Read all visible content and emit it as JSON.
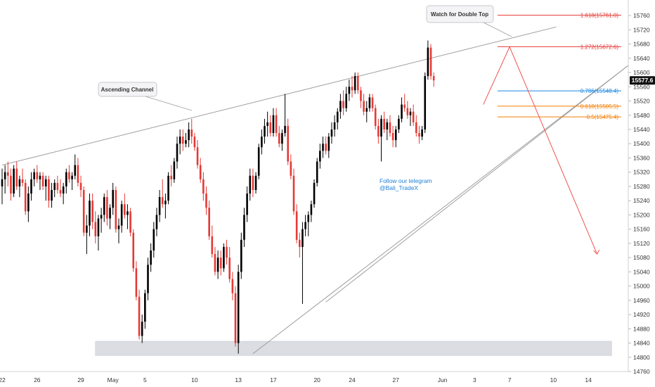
{
  "chart_data": {
    "type": "candlestick",
    "y_range": [
      14760,
      15780
    ],
    "y_ticks": [
      14760,
      14800,
      14840,
      14880,
      14920,
      14960,
      15000,
      15040,
      15080,
      15120,
      15160,
      15200,
      15240,
      15280,
      15320,
      15360,
      15400,
      15440,
      15480,
      15520,
      15560,
      15600,
      15640,
      15680,
      15720,
      15760
    ],
    "x_ticks": [
      {
        "label": "22",
        "bar": 0
      },
      {
        "label": "26",
        "bar": 12
      },
      {
        "label": "29",
        "bar": 27
      },
      {
        "label": "May",
        "bar": 38
      },
      {
        "label": "5",
        "bar": 49
      },
      {
        "label": "10",
        "bar": 66
      },
      {
        "label": "13",
        "bar": 81
      },
      {
        "label": "17",
        "bar": 93
      },
      {
        "label": "20",
        "bar": 108
      },
      {
        "label": "24",
        "bar": 120
      },
      {
        "label": "27",
        "bar": 135
      },
      {
        "label": "Jun",
        "bar": 151
      },
      {
        "label": "3",
        "bar": 162
      },
      {
        "label": "7",
        "bar": 174
      },
      {
        "label": "10",
        "bar": 189
      },
      {
        "label": "14",
        "bar": 201
      }
    ],
    "current_price": "15577.6",
    "candles": [
      {
        "o": 15280,
        "h": 15330,
        "l": 15230,
        "c": 15300
      },
      {
        "o": 15300,
        "h": 15340,
        "l": 15260,
        "c": 15320
      },
      {
        "o": 15320,
        "h": 15350,
        "l": 15280,
        "c": 15310
      },
      {
        "o": 15310,
        "h": 15330,
        "l": 15240,
        "c": 15260
      },
      {
        "o": 15260,
        "h": 15340,
        "l": 15250,
        "c": 15330
      },
      {
        "o": 15330,
        "h": 15350,
        "l": 15270,
        "c": 15280
      },
      {
        "o": 15280,
        "h": 15310,
        "l": 15250,
        "c": 15300
      },
      {
        "o": 15300,
        "h": 15330,
        "l": 15280,
        "c": 15290
      },
      {
        "o": 15290,
        "h": 15300,
        "l": 15200,
        "c": 15210
      },
      {
        "o": 15210,
        "h": 15280,
        "l": 15180,
        "c": 15260
      },
      {
        "o": 15260,
        "h": 15320,
        "l": 15240,
        "c": 15300
      },
      {
        "o": 15300,
        "h": 15330,
        "l": 15280,
        "c": 15320
      },
      {
        "o": 15320,
        "h": 15340,
        "l": 15290,
        "c": 15300
      },
      {
        "o": 15300,
        "h": 15320,
        "l": 15270,
        "c": 15310
      },
      {
        "o": 15310,
        "h": 15320,
        "l": 15270,
        "c": 15280
      },
      {
        "o": 15280,
        "h": 15310,
        "l": 15240,
        "c": 15300
      },
      {
        "o": 15300,
        "h": 15310,
        "l": 15220,
        "c": 15240
      },
      {
        "o": 15240,
        "h": 15290,
        "l": 15220,
        "c": 15270
      },
      {
        "o": 15270,
        "h": 15300,
        "l": 15250,
        "c": 15290
      },
      {
        "o": 15290,
        "h": 15310,
        "l": 15260,
        "c": 15270
      },
      {
        "o": 15270,
        "h": 15300,
        "l": 15250,
        "c": 15260
      },
      {
        "o": 15260,
        "h": 15290,
        "l": 15230,
        "c": 15280
      },
      {
        "o": 15280,
        "h": 15330,
        "l": 15260,
        "c": 15320
      },
      {
        "o": 15320,
        "h": 15340,
        "l": 15290,
        "c": 15300
      },
      {
        "o": 15300,
        "h": 15320,
        "l": 15270,
        "c": 15310
      },
      {
        "o": 15310,
        "h": 15370,
        "l": 15300,
        "c": 15340
      },
      {
        "o": 15340,
        "h": 15360,
        "l": 15280,
        "c": 15290
      },
      {
        "o": 15290,
        "h": 15310,
        "l": 15250,
        "c": 15270
      },
      {
        "o": 15270,
        "h": 15280,
        "l": 15140,
        "c": 15150
      },
      {
        "o": 15150,
        "h": 15200,
        "l": 15090,
        "c": 15170
      },
      {
        "o": 15170,
        "h": 15260,
        "l": 15140,
        "c": 15240
      },
      {
        "o": 15240,
        "h": 15260,
        "l": 15160,
        "c": 15180
      },
      {
        "o": 15180,
        "h": 15210,
        "l": 15120,
        "c": 15140
      },
      {
        "o": 15140,
        "h": 15200,
        "l": 15100,
        "c": 15190
      },
      {
        "o": 15190,
        "h": 15220,
        "l": 15150,
        "c": 15200
      },
      {
        "o": 15200,
        "h": 15260,
        "l": 15180,
        "c": 15250
      },
      {
        "o": 15250,
        "h": 15270,
        "l": 15170,
        "c": 15190
      },
      {
        "o": 15190,
        "h": 15230,
        "l": 15160,
        "c": 15220
      },
      {
        "o": 15220,
        "h": 15290,
        "l": 15200,
        "c": 15270
      },
      {
        "o": 15270,
        "h": 15280,
        "l": 15150,
        "c": 15160
      },
      {
        "o": 15160,
        "h": 15190,
        "l": 15120,
        "c": 15170
      },
      {
        "o": 15170,
        "h": 15240,
        "l": 15150,
        "c": 15230
      },
      {
        "o": 15230,
        "h": 15260,
        "l": 15190,
        "c": 15200
      },
      {
        "o": 15200,
        "h": 15230,
        "l": 15160,
        "c": 15210
      },
      {
        "o": 15210,
        "h": 15220,
        "l": 15140,
        "c": 15150
      },
      {
        "o": 15150,
        "h": 15160,
        "l": 15040,
        "c": 15050
      },
      {
        "o": 15050,
        "h": 15070,
        "l": 14960,
        "c": 14970
      },
      {
        "o": 14970,
        "h": 14990,
        "l": 14850,
        "c": 14860
      },
      {
        "o": 14860,
        "h": 14920,
        "l": 14840,
        "c": 14900
      },
      {
        "o": 14900,
        "h": 14990,
        "l": 14880,
        "c": 14980
      },
      {
        "o": 14980,
        "h": 15080,
        "l": 14960,
        "c": 15060
      },
      {
        "o": 15060,
        "h": 15120,
        "l": 15040,
        "c": 15100
      },
      {
        "o": 15100,
        "h": 15180,
        "l": 15080,
        "c": 15160
      },
      {
        "o": 15160,
        "h": 15220,
        "l": 15140,
        "c": 15200
      },
      {
        "o": 15200,
        "h": 15270,
        "l": 15180,
        "c": 15250
      },
      {
        "o": 15250,
        "h": 15300,
        "l": 15220,
        "c": 15230
      },
      {
        "o": 15230,
        "h": 15260,
        "l": 15190,
        "c": 15240
      },
      {
        "o": 15240,
        "h": 15320,
        "l": 15230,
        "c": 15310
      },
      {
        "o": 15310,
        "h": 15340,
        "l": 15280,
        "c": 15300
      },
      {
        "o": 15300,
        "h": 15360,
        "l": 15290,
        "c": 15350
      },
      {
        "o": 15350,
        "h": 15420,
        "l": 15330,
        "c": 15400
      },
      {
        "o": 15400,
        "h": 15440,
        "l": 15370,
        "c": 15420
      },
      {
        "o": 15420,
        "h": 15440,
        "l": 15380,
        "c": 15400
      },
      {
        "o": 15400,
        "h": 15430,
        "l": 15390,
        "c": 15410
      },
      {
        "o": 15410,
        "h": 15460,
        "l": 15390,
        "c": 15440
      },
      {
        "o": 15440,
        "h": 15470,
        "l": 15400,
        "c": 15420
      },
      {
        "o": 15420,
        "h": 15430,
        "l": 15380,
        "c": 15390
      },
      {
        "o": 15390,
        "h": 15410,
        "l": 15330,
        "c": 15340
      },
      {
        "o": 15340,
        "h": 15360,
        "l": 15290,
        "c": 15300
      },
      {
        "o": 15300,
        "h": 15320,
        "l": 15240,
        "c": 15260
      },
      {
        "o": 15260,
        "h": 15280,
        "l": 15200,
        "c": 15220
      },
      {
        "o": 15220,
        "h": 15240,
        "l": 15130,
        "c": 15140
      },
      {
        "o": 15140,
        "h": 15170,
        "l": 15080,
        "c": 15090
      },
      {
        "o": 15090,
        "h": 15110,
        "l": 15030,
        "c": 15040
      },
      {
        "o": 15040,
        "h": 15100,
        "l": 15020,
        "c": 15080
      },
      {
        "o": 15080,
        "h": 15100,
        "l": 15030,
        "c": 15050
      },
      {
        "o": 15050,
        "h": 15120,
        "l": 15040,
        "c": 15110
      },
      {
        "o": 15110,
        "h": 15130,
        "l": 15060,
        "c": 15080
      },
      {
        "o": 15080,
        "h": 15110,
        "l": 15010,
        "c": 15020
      },
      {
        "o": 15020,
        "h": 15040,
        "l": 14960,
        "c": 14980
      },
      {
        "o": 14980,
        "h": 15000,
        "l": 14830,
        "c": 14840
      },
      {
        "o": 14840,
        "h": 15060,
        "l": 14810,
        "c": 15040
      },
      {
        "o": 15040,
        "h": 15150,
        "l": 15020,
        "c": 15130
      },
      {
        "o": 15130,
        "h": 15220,
        "l": 15110,
        "c": 15200
      },
      {
        "o": 15200,
        "h": 15280,
        "l": 15180,
        "c": 15260
      },
      {
        "o": 15260,
        "h": 15330,
        "l": 15240,
        "c": 15310
      },
      {
        "o": 15310,
        "h": 15330,
        "l": 15250,
        "c": 15270
      },
      {
        "o": 15270,
        "h": 15320,
        "l": 15260,
        "c": 15310
      },
      {
        "o": 15310,
        "h": 15400,
        "l": 15300,
        "c": 15390
      },
      {
        "o": 15390,
        "h": 15440,
        "l": 15370,
        "c": 15420
      },
      {
        "o": 15420,
        "h": 15470,
        "l": 15400,
        "c": 15450
      },
      {
        "o": 15450,
        "h": 15490,
        "l": 15420,
        "c": 15460
      },
      {
        "o": 15460,
        "h": 15480,
        "l": 15420,
        "c": 15430
      },
      {
        "o": 15430,
        "h": 15500,
        "l": 15420,
        "c": 15480
      },
      {
        "o": 15480,
        "h": 15500,
        "l": 15420,
        "c": 15430
      },
      {
        "o": 15430,
        "h": 15450,
        "l": 15390,
        "c": 15400
      },
      {
        "o": 15400,
        "h": 15440,
        "l": 15380,
        "c": 15430
      },
      {
        "o": 15430,
        "h": 15540,
        "l": 15420,
        "c": 15450
      },
      {
        "o": 15450,
        "h": 15470,
        "l": 15340,
        "c": 15350
      },
      {
        "o": 15350,
        "h": 15370,
        "l": 15300,
        "c": 15310
      },
      {
        "o": 15310,
        "h": 15330,
        "l": 15200,
        "c": 15210
      },
      {
        "o": 15210,
        "h": 15230,
        "l": 15120,
        "c": 15130
      },
      {
        "o": 15130,
        "h": 15150,
        "l": 15080,
        "c": 15110
      },
      {
        "o": 15110,
        "h": 15180,
        "l": 14950,
        "c": 15160
      },
      {
        "o": 15160,
        "h": 15200,
        "l": 15140,
        "c": 15180
      },
      {
        "o": 15180,
        "h": 15210,
        "l": 15140,
        "c": 15200
      },
      {
        "o": 15200,
        "h": 15240,
        "l": 15180,
        "c": 15230
      },
      {
        "o": 15230,
        "h": 15300,
        "l": 15220,
        "c": 15290
      },
      {
        "o": 15290,
        "h": 15360,
        "l": 15280,
        "c": 15350
      },
      {
        "o": 15350,
        "h": 15400,
        "l": 15330,
        "c": 15380
      },
      {
        "o": 15380,
        "h": 15420,
        "l": 15360,
        "c": 15400
      },
      {
        "o": 15400,
        "h": 15420,
        "l": 15370,
        "c": 15380
      },
      {
        "o": 15380,
        "h": 15430,
        "l": 15360,
        "c": 15420
      },
      {
        "o": 15420,
        "h": 15460,
        "l": 15400,
        "c": 15440
      },
      {
        "o": 15440,
        "h": 15480,
        "l": 15420,
        "c": 15460
      },
      {
        "o": 15460,
        "h": 15500,
        "l": 15440,
        "c": 15490
      },
      {
        "o": 15490,
        "h": 15540,
        "l": 15470,
        "c": 15520
      },
      {
        "o": 15520,
        "h": 15550,
        "l": 15480,
        "c": 15500
      },
      {
        "o": 15500,
        "h": 15560,
        "l": 15490,
        "c": 15540
      },
      {
        "o": 15540,
        "h": 15580,
        "l": 15520,
        "c": 15560
      },
      {
        "o": 15560,
        "h": 15590,
        "l": 15530,
        "c": 15550
      },
      {
        "o": 15550,
        "h": 15600,
        "l": 15540,
        "c": 15590
      },
      {
        "o": 15590,
        "h": 15600,
        "l": 15540,
        "c": 15550
      },
      {
        "o": 15550,
        "h": 15560,
        "l": 15500,
        "c": 15520
      },
      {
        "o": 15520,
        "h": 15540,
        "l": 15480,
        "c": 15490
      },
      {
        "o": 15490,
        "h": 15520,
        "l": 15460,
        "c": 15500
      },
      {
        "o": 15500,
        "h": 15540,
        "l": 15490,
        "c": 15530
      },
      {
        "o": 15530,
        "h": 15540,
        "l": 15490,
        "c": 15500
      },
      {
        "o": 15500,
        "h": 15510,
        "l": 15440,
        "c": 15450
      },
      {
        "o": 15450,
        "h": 15470,
        "l": 15400,
        "c": 15420
      },
      {
        "o": 15420,
        "h": 15480,
        "l": 15350,
        "c": 15470
      },
      {
        "o": 15470,
        "h": 15490,
        "l": 15430,
        "c": 15440
      },
      {
        "o": 15440,
        "h": 15470,
        "l": 15410,
        "c": 15460
      },
      {
        "o": 15460,
        "h": 15480,
        "l": 15420,
        "c": 15430
      },
      {
        "o": 15430,
        "h": 15450,
        "l": 15390,
        "c": 15410
      },
      {
        "o": 15410,
        "h": 15450,
        "l": 15390,
        "c": 15440
      },
      {
        "o": 15440,
        "h": 15480,
        "l": 15430,
        "c": 15470
      },
      {
        "o": 15470,
        "h": 15530,
        "l": 15460,
        "c": 15510
      },
      {
        "o": 15510,
        "h": 15540,
        "l": 15490,
        "c": 15500
      },
      {
        "o": 15500,
        "h": 15520,
        "l": 15470,
        "c": 15480
      },
      {
        "o": 15480,
        "h": 15500,
        "l": 15450,
        "c": 15490
      },
      {
        "o": 15490,
        "h": 15510,
        "l": 15450,
        "c": 15460
      },
      {
        "o": 15460,
        "h": 15480,
        "l": 15420,
        "c": 15430
      },
      {
        "o": 15430,
        "h": 15450,
        "l": 15400,
        "c": 15420
      },
      {
        "o": 15420,
        "h": 15450,
        "l": 15410,
        "c": 15440
      },
      {
        "o": 15440,
        "h": 15600,
        "l": 15430,
        "c": 15590
      },
      {
        "o": 15590,
        "h": 15690,
        "l": 15580,
        "c": 15670
      },
      {
        "o": 15670,
        "h": 15680,
        "l": 15580,
        "c": 15590
      },
      {
        "o": 15590,
        "h": 15600,
        "l": 15560,
        "c": 15578
      }
    ],
    "trendlines": [
      {
        "name": "ascending-channel-upper",
        "from": {
          "bar": 0,
          "price": 15340
        },
        "to": {
          "bar": 190,
          "price": 15728
        }
      },
      {
        "name": "ascending-channel-lower",
        "from": {
          "bar": 86,
          "price": 14810
        },
        "to": {
          "bar": 217,
          "price": 15620
        }
      },
      {
        "name": "secondary-support",
        "from": {
          "bar": 111,
          "price": 14955
        },
        "to": {
          "bar": 217,
          "price": 15620
        }
      }
    ],
    "fib_levels": [
      {
        "label": "1.618(15761.0)",
        "price": 15761.0,
        "color": "#e53935"
      },
      {
        "label": "1.272(15672.6)",
        "price": 15672.6,
        "color": "#e53935"
      },
      {
        "label": "0.786(15548.4)",
        "price": 15548.4,
        "color": "#1e88e5"
      },
      {
        "label": "0.618(15505.5)",
        "price": 15505.5,
        "color": "#f57c00"
      },
      {
        "label": "0.5(15475.4)",
        "price": 15475.4,
        "color": "#f57c00"
      }
    ],
    "support_zone": {
      "from_bar": 32,
      "to_bar": 209,
      "low": 14805,
      "high": 14845
    },
    "projection": [
      {
        "bar": 165,
        "price": 15510
      },
      {
        "bar": 174,
        "price": 15672
      },
      {
        "bar": 204,
        "price": 15090
      }
    ],
    "annotations": {
      "ascending_channel": "Ascending Channel",
      "double_top": "Watch for Double Top",
      "telegram_line1": "Follow our telegram",
      "telegram_line2": "@Bali_TradeX"
    },
    "colors": {
      "up": "#000000",
      "down": "#e53935",
      "channel": "#9e9e9e",
      "projection": "#ef5350",
      "note": "#1e7fd6",
      "zone": "#dcdde3"
    }
  }
}
